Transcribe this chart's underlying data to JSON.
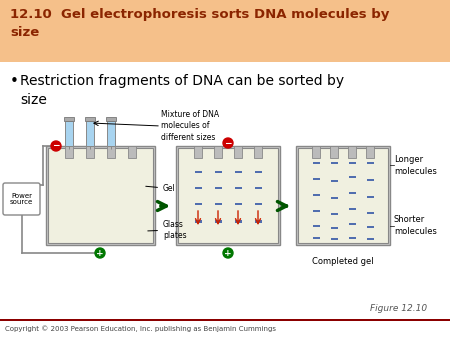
{
  "title": "12.10  Gel electrophoresis sorts DNA molecules by\nsize",
  "title_bg": "#f5c08a",
  "title_color": "#8B2500",
  "title_fontsize": 9.5,
  "bullet_text": "Restriction fragments of DNA can be sorted by\nsize",
  "bullet_fontsize": 10,
  "copyright": "Copyright © 2003 Pearson Education, Inc. publishing as Benjamin Cummings",
  "figure_label": "Figure 12.10",
  "bg_color": "#ffffff",
  "label_gel": "Gel",
  "label_glass": "Glass\nplates",
  "label_power": "Power\nsource",
  "label_mixture": "Mixture of DNA\nmolecules of\ndifferent sizes",
  "label_longer": "Longer\nmolecules",
  "label_shorter": "Shorter\nmolecules",
  "label_completed": "Completed gel",
  "gel_bg": "#f0f0e0",
  "gel_border": "#999999",
  "band_color": "#4060aa",
  "arrow_color": "#005500",
  "tube_liquid": "#a8d4f0",
  "neg_color": "#cc0000",
  "pos_color": "#007700",
  "wire_color": "#888888"
}
